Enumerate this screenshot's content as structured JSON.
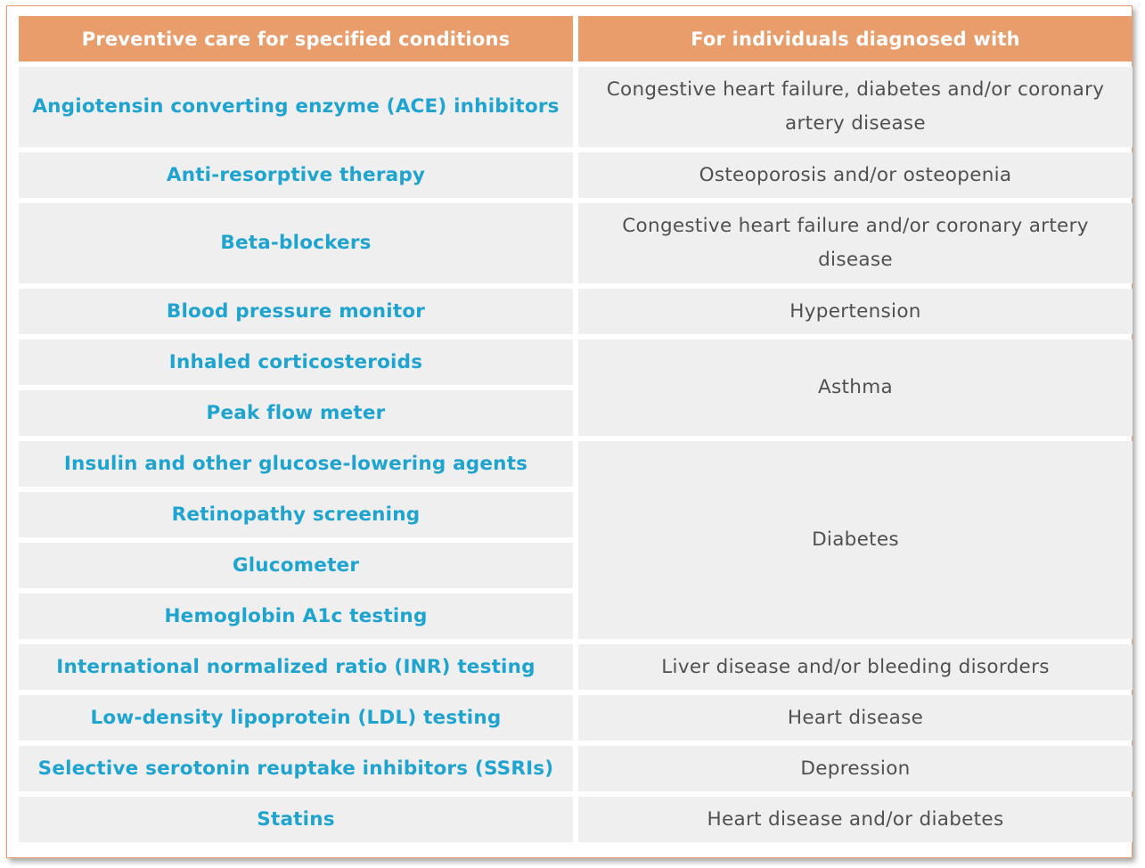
{
  "table": {
    "headers": [
      "Preventive care for specified conditions",
      "For individuals diagnosed with"
    ],
    "rows": [
      {
        "care": "Angiotensin converting enzyme (ACE) inhibitors",
        "condition": "Congestive heart failure, diabetes and/or coronary artery disease"
      },
      {
        "care": "Anti-resorptive therapy",
        "condition": "Osteoporosis and/or osteopenia"
      },
      {
        "care": "Beta-blockers",
        "condition": "Congestive heart failure and/or coronary artery disease"
      },
      {
        "care": "Blood pressure monitor",
        "condition": "Hypertension"
      },
      {
        "care": "Inhaled corticosteroids",
        "condition": "Asthma"
      },
      {
        "care": "Peak flow meter",
        "condition": null
      },
      {
        "care": "Insulin and other glucose-lowering agents",
        "condition": "Diabetes"
      },
      {
        "care": "Retinopathy screening",
        "condition": null
      },
      {
        "care": "Glucometer",
        "condition": null
      },
      {
        "care": "Hemoglobin A1c testing",
        "condition": null
      },
      {
        "care": "International normalized ratio (INR) testing",
        "condition": "Liver disease and/or bleeding disorders"
      },
      {
        "care": "Low-density lipoprotein (LDL) testing",
        "condition": "Heart disease"
      },
      {
        "care": "Selective serotonin reuptake inhibitors (SSRIs)",
        "condition": "Depression"
      },
      {
        "care": "Statins",
        "condition": "Heart disease and/or diabetes"
      }
    ]
  },
  "colors": {
    "header_bg": "#e99d6b",
    "cell_bg": "#efefef",
    "care_text": "#1fa3cf",
    "condition_text": "#505050"
  }
}
